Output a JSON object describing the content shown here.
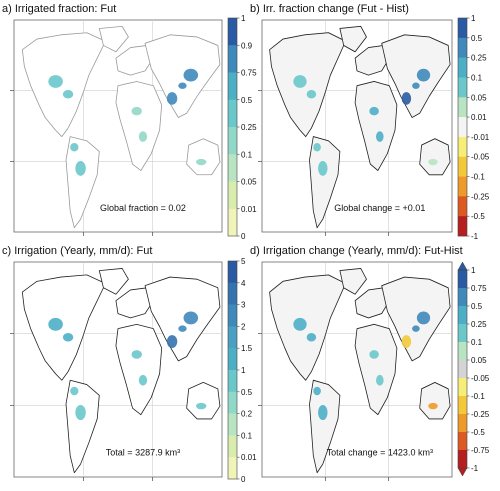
{
  "chart_data": [
    {
      "type": "heatmap",
      "title": "a) Irrigated fraction: Fut",
      "annotation": "Global fraction = 0.02",
      "colorbar_ticks": [
        "1",
        "0.9",
        "0.75",
        "0.5",
        "0.25",
        "0.1",
        "0.05",
        "0.01",
        "0"
      ],
      "colorbar_colors": [
        "#2a5aa3",
        "#3f8abb",
        "#4dafc6",
        "#6ac8cb",
        "#92d8c8",
        "#b8e4c2",
        "#d8ecae",
        "#f0f4b8"
      ],
      "hotspots": [
        {
          "region": "North America",
          "value": 0.25
        },
        {
          "region": "South America",
          "value": 0.25
        },
        {
          "region": "Africa",
          "value": 0.1
        },
        {
          "region": "India",
          "value": 0.75
        },
        {
          "region": "China",
          "value": 0.75
        },
        {
          "region": "Australia",
          "value": 0.1
        }
      ]
    },
    {
      "type": "heatmap",
      "title": "b) Irr. fraction change (Fut - Hist)",
      "annotation": "Global change = +0.01",
      "colorbar_ticks": [
        "1",
        "0.5",
        "0.25",
        "0.1",
        "0.05",
        "0.01",
        "-0.01",
        "-0.05",
        "-0.1",
        "-0.25",
        "-0.5",
        "-1"
      ],
      "colorbar_colors": [
        "#2a5aa3",
        "#3f8abb",
        "#4dafc6",
        "#6ac8cb",
        "#b8e4c2",
        "#f4f4f4",
        "#f6ee76",
        "#f3c93a",
        "#ee9a2a",
        "#dc5a22",
        "#b51f1f"
      ],
      "hotspots": [
        {
          "region": "North America",
          "value": 0.05
        },
        {
          "region": "South America",
          "value": 0.05
        },
        {
          "region": "Africa",
          "value": 0.1
        },
        {
          "region": "India",
          "value": 0.5
        },
        {
          "region": "China",
          "value": 0.25
        },
        {
          "region": "Australia",
          "value": 0.01
        }
      ]
    },
    {
      "type": "heatmap",
      "title": "c) Irrigation (Yearly, mm/d): Fut",
      "annotation": "Total = 3287.9 km³",
      "colorbar_ticks": [
        "5",
        "4",
        "3",
        "2",
        "1.5",
        "1",
        "0.5",
        "0.2",
        "0.1",
        "0.01",
        "0"
      ],
      "colorbar_colors": [
        "#2a5aa3",
        "#3573ae",
        "#3f8abb",
        "#4a9fc2",
        "#4dafc6",
        "#6ac8cb",
        "#92d8c8",
        "#b8e4c2",
        "#d8ecae",
        "#f0f4b8"
      ],
      "hotspots": [
        {
          "region": "North America",
          "value": 1
        },
        {
          "region": "South America",
          "value": 0.5
        },
        {
          "region": "Africa",
          "value": 0.5
        },
        {
          "region": "India",
          "value": 3
        },
        {
          "region": "China",
          "value": 2
        },
        {
          "region": "Australia",
          "value": 0.5
        }
      ]
    },
    {
      "type": "heatmap",
      "title": "d) Irrigation change (Yearly, mm/d): Fut-Hist",
      "annotation": "Total change = 1423.0 km³",
      "colorbar_ticks": [
        "1",
        "0.75",
        "0.5",
        "0.25",
        "0.1",
        "0.05",
        "-0.05",
        "-0.1",
        "-0.25",
        "-0.5",
        "-0.75",
        "-1"
      ],
      "colorbar_colors": [
        "#2a5aa3",
        "#3f8abb",
        "#4dafc6",
        "#6ac8cb",
        "#b8e4c2",
        "#d4d4d4",
        "#f6ee76",
        "#f3c93a",
        "#ee9a2a",
        "#dc5a22",
        "#b51f1f"
      ],
      "colorbar_extend": "both",
      "hotspots": [
        {
          "region": "North America",
          "value": 0.25
        },
        {
          "region": "South America",
          "value": 0.25
        },
        {
          "region": "Africa",
          "value": 0.1
        },
        {
          "region": "India",
          "value": -0.25
        },
        {
          "region": "China",
          "value": 0.5
        },
        {
          "region": "Australia",
          "value": -0.5
        }
      ]
    }
  ]
}
